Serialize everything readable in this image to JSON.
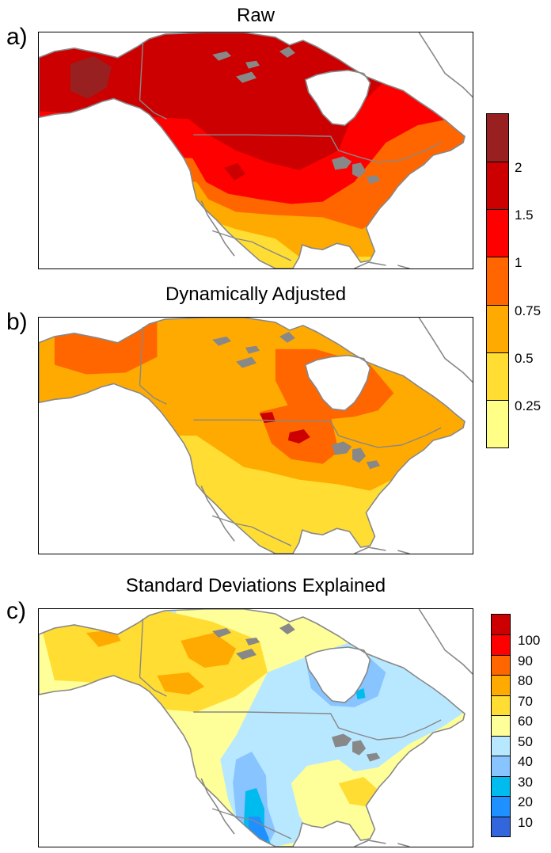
{
  "chart_data": [
    {
      "type": "heatmap",
      "panel_label": "a)",
      "title": "Raw",
      "colorbar": {
        "ticks": [
          "0.25",
          "0.5",
          "0.75",
          "1",
          "1.5",
          "2"
        ],
        "colors": [
          "#ffff88",
          "#ffdd33",
          "#ffaa00",
          "#ff6600",
          "#ff0000",
          "#cc0000",
          "#992020"
        ]
      }
    },
    {
      "type": "heatmap",
      "panel_label": "b)",
      "title": "Dynamically Adjusted",
      "colorbar": "shared with panel a"
    },
    {
      "type": "heatmap",
      "panel_label": "c)",
      "title": "Standard Deviations Explained",
      "colorbar": {
        "ticks": [
          "10",
          "20",
          "30",
          "40",
          "50",
          "60",
          "70",
          "80",
          "90",
          "100"
        ],
        "colors": [
          "#3366dd",
          "#1e90ff",
          "#00bbee",
          "#88c4ff",
          "#b8e8ff",
          "#ffff99",
          "#ffdd33",
          "#ffaa00",
          "#ff6600",
          "#ff0000",
          "#cc0000"
        ]
      }
    }
  ]
}
